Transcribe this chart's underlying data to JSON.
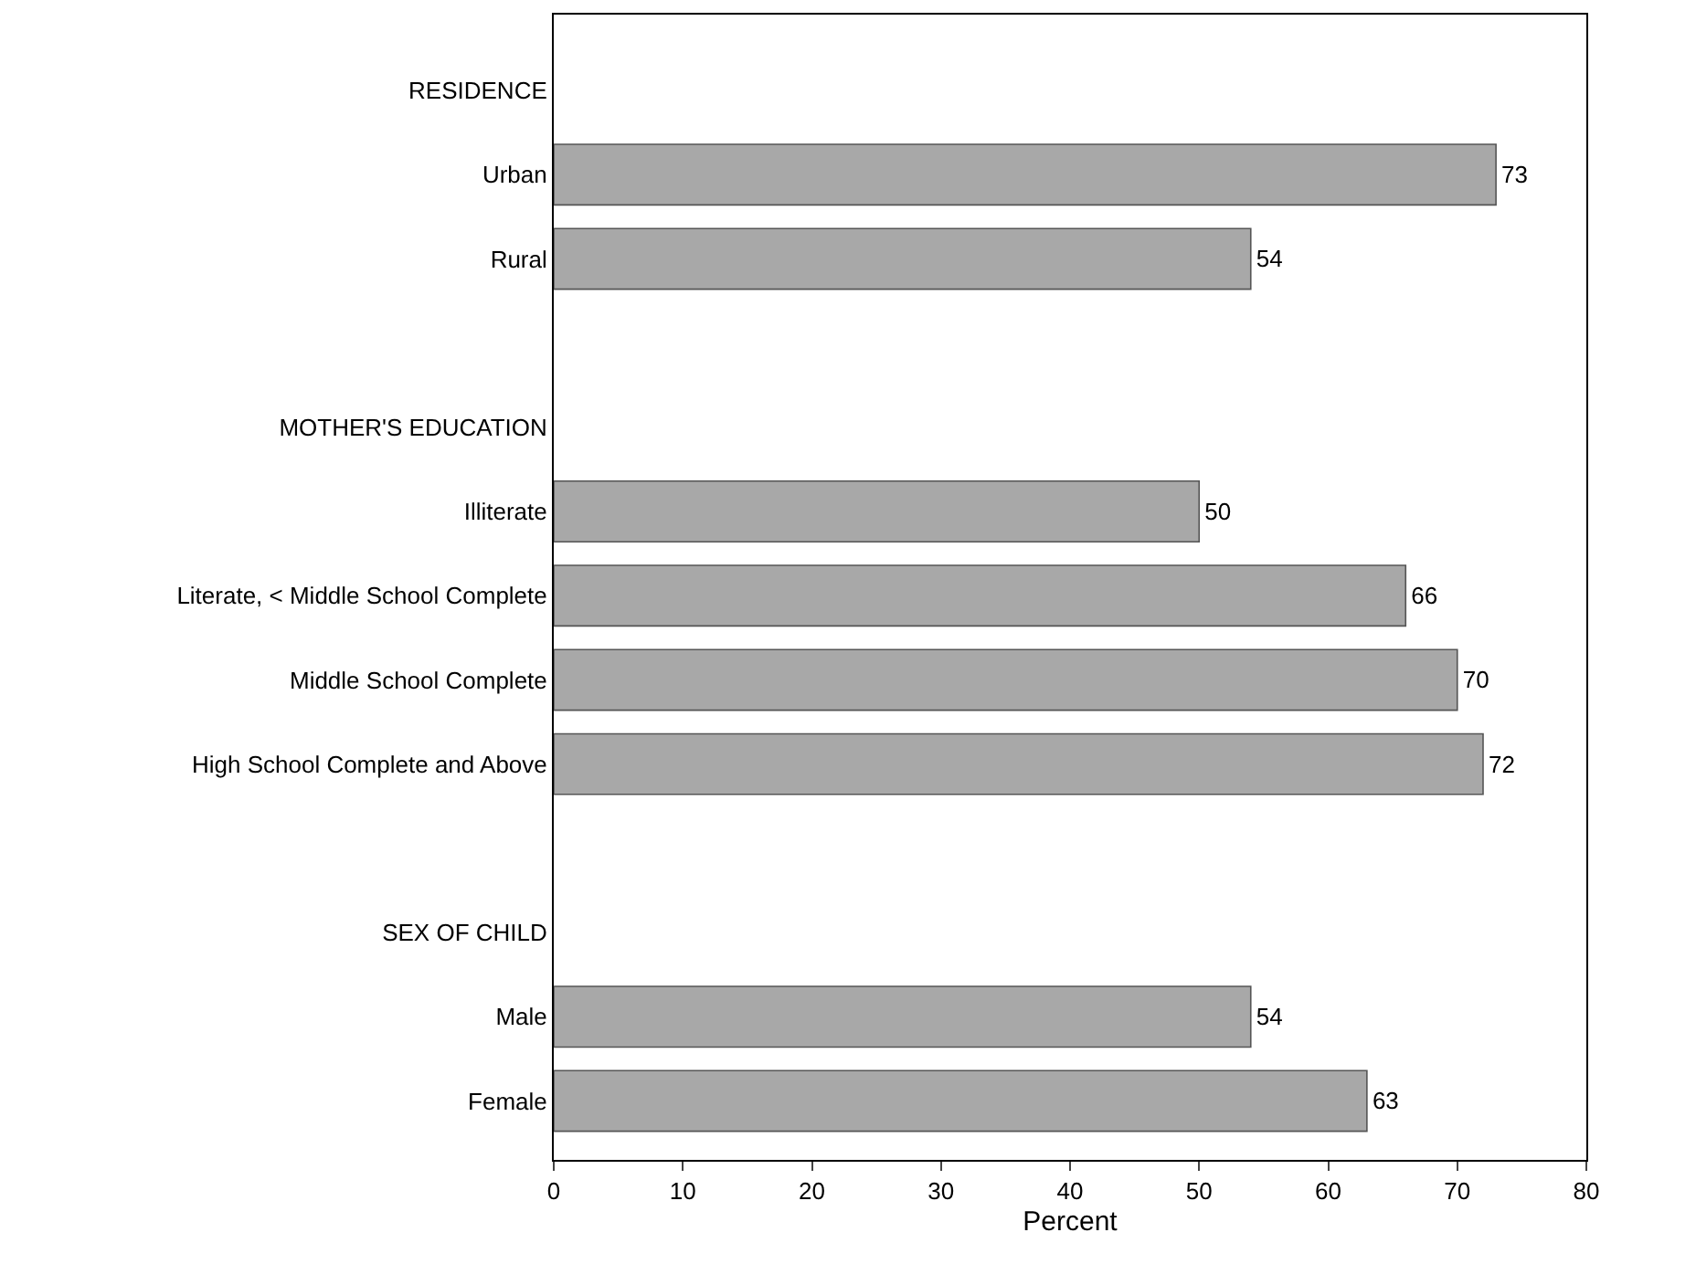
{
  "chart_data": {
    "type": "bar",
    "orientation": "horizontal",
    "xlabel": "Percent",
    "categories": [
      "RESIDENCE",
      "Urban",
      "Rural",
      null,
      "MOTHER'S EDUCATION",
      "Illiterate",
      "Literate, < Middle School Complete",
      "Middle School Complete",
      "High School Complete and Above",
      null,
      "SEX OF CHILD",
      "Male",
      "Female"
    ],
    "values": [
      null,
      73,
      54,
      null,
      null,
      50,
      66,
      70,
      72,
      null,
      null,
      54,
      63
    ],
    "color": "#a8a8a8",
    "xlim": [
      0,
      80
    ],
    "xticks": [
      0,
      10,
      20,
      30,
      40,
      50,
      60,
      70,
      80
    ],
    "data_labels": true
  }
}
